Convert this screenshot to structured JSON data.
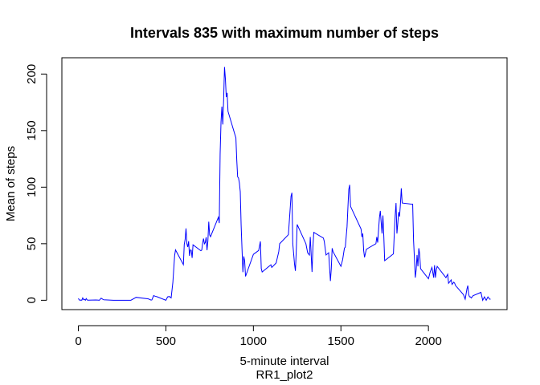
{
  "chart_data": {
    "type": "line",
    "title": "Intervals 835 with maximum number of steps",
    "x_label": "5-minute interval",
    "subtitle": "RR1_plot2",
    "y_label": "Mean of steps",
    "color": "#0000ff",
    "xlim": [
      -94.2,
      2449.2
    ],
    "ylim": [
      -8.25,
      214.4
    ],
    "xticks": [
      0,
      500,
      1000,
      1500,
      2000
    ],
    "yticks": [
      0,
      50,
      100,
      150,
      200
    ],
    "x": [
      0,
      5,
      10,
      15,
      20,
      25,
      30,
      35,
      40,
      45,
      50,
      55,
      100,
      110,
      120,
      130,
      145,
      200,
      300,
      330,
      400,
      415,
      420,
      430,
      440,
      450,
      500,
      510,
      520,
      530,
      540,
      550,
      555,
      600,
      605,
      610,
      615,
      620,
      625,
      630,
      635,
      640,
      645,
      650,
      655,
      700,
      705,
      710,
      715,
      720,
      725,
      730,
      735,
      740,
      745,
      750,
      755,
      800,
      805,
      810,
      815,
      820,
      825,
      830,
      835,
      840,
      845,
      850,
      855,
      900,
      905,
      910,
      915,
      920,
      925,
      930,
      935,
      940,
      945,
      950,
      955,
      1000,
      1030,
      1040,
      1045,
      1050,
      1100,
      1105,
      1130,
      1145,
      1150,
      1200,
      1215,
      1220,
      1225,
      1235,
      1240,
      1245,
      1250,
      1300,
      1310,
      1320,
      1325,
      1335,
      1340,
      1345,
      1400,
      1405,
      1415,
      1430,
      1440,
      1445,
      1450,
      1455,
      1500,
      1510,
      1520,
      1525,
      1535,
      1540,
      1545,
      1550,
      1555,
      1615,
      1620,
      1625,
      1630,
      1635,
      1645,
      1655,
      1700,
      1705,
      1710,
      1720,
      1725,
      1730,
      1735,
      1740,
      1745,
      1750,
      1800,
      1805,
      1810,
      1815,
      1820,
      1825,
      1830,
      1835,
      1840,
      1845,
      1850,
      1900,
      1910,
      1915,
      1920,
      1925,
      1930,
      1935,
      1940,
      1945,
      1950,
      1955,
      2000,
      2010,
      2020,
      2030,
      2035,
      2040,
      2045,
      2050,
      2100,
      2110,
      2115,
      2120,
      2130,
      2135,
      2140,
      2145,
      2150,
      2155,
      2200,
      2210,
      2220,
      2225,
      2230,
      2235,
      2240,
      2245,
      2250,
      2255,
      2300,
      2310,
      2320,
      2330,
      2340,
      2345,
      2350,
      2355
    ],
    "values": [
      1.7,
      0.3,
      0.1,
      0.2,
      0.1,
      2.1,
      0.5,
      0.9,
      0,
      1.5,
      0.3,
      0.1,
      0.3,
      0.2,
      0,
      1.8,
      0.4,
      0,
      0,
      2.6,
      1.2,
      0.2,
      0.3,
      4.1,
      3.5,
      3.1,
      0,
      3,
      3.3,
      2.1,
      16,
      39.5,
      44.5,
      31.5,
      49.3,
      53.8,
      63.5,
      50,
      47.1,
      52.2,
      39.3,
      44.5,
      44.2,
      37.4,
      49,
      43.8,
      44.4,
      50.5,
      54.5,
      49.9,
      50.9,
      55.7,
      44.3,
      52.3,
      69.5,
      57.8,
      56.2,
      73.4,
      68.2,
      129.4,
      157.5,
      171.2,
      155.4,
      177.3,
      206.2,
      195.9,
      179.6,
      183.4,
      167,
      143.5,
      124,
      109.1,
      108.1,
      103.7,
      96,
      66.2,
      45.2,
      24.8,
      38.8,
      35,
      21.1,
      40.6,
      44,
      52,
      28,
      25,
      31.4,
      29,
      33,
      43,
      50,
      58,
      92,
      95,
      50,
      32,
      26,
      44,
      67,
      50,
      42,
      40,
      56,
      25,
      47,
      60,
      55,
      52,
      40,
      42,
      17,
      28,
      46,
      43,
      30,
      36,
      46,
      47,
      65,
      82,
      98,
      102,
      83,
      63,
      56,
      59,
      44,
      38,
      45,
      46,
      50,
      56,
      51,
      73,
      79,
      69,
      59,
      75,
      57,
      35,
      41,
      59,
      75,
      86,
      59,
      68,
      78,
      74,
      85,
      99,
      86,
      85,
      85,
      53,
      37,
      20,
      27,
      40,
      30,
      46,
      41,
      28,
      19,
      25,
      29,
      20,
      31,
      20,
      27,
      30,
      20,
      23,
      15,
      16,
      18,
      14,
      15,
      16,
      15,
      13,
      5,
      1,
      10,
      13,
      5,
      3,
      3,
      2,
      3,
      4,
      7,
      0,
      3,
      0,
      3,
      2,
      1,
      1
    ]
  }
}
